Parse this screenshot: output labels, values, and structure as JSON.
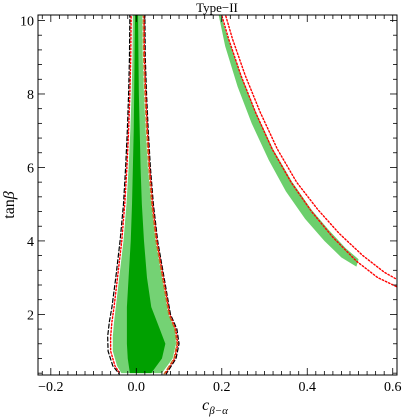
{
  "chart_data": {
    "type": "contour",
    "title": "Type−II",
    "xlabel": {
      "base": "c",
      "subscript": "β−α"
    },
    "ylabel": {
      "base": "tan",
      "symbol": "β"
    },
    "xlim": [
      -0.23,
      0.61
    ],
    "ylim": [
      0.35,
      10.15
    ],
    "x_ticks": [
      -0.2,
      0.0,
      0.2,
      0.4,
      0.6
    ],
    "x_tick_labels": [
      "−0.2",
      "0.0",
      "0.2",
      "0.4",
      "0.6"
    ],
    "y_ticks": [
      2,
      4,
      6,
      8,
      10
    ],
    "y_tick_labels": [
      "2",
      "4",
      "6",
      "8",
      "10"
    ],
    "grid": false,
    "colors": {
      "inner_region": "#00a000",
      "outer_region": "#74d274",
      "wrong_sign_region": "#6ccf6c",
      "dashed_black": "#000000",
      "dotted_red": "#ff0000",
      "dashed_orange": "#c07020"
    },
    "regions": [
      {
        "id": "left-outer",
        "right": [
          [
            0.06,
            0.4
          ],
          [
            0.085,
            0.8
          ],
          [
            0.093,
            1.2
          ],
          [
            0.09,
            1.6
          ],
          [
            0.075,
            2.0
          ],
          [
            0.06,
            3.0
          ],
          [
            0.045,
            4.0
          ],
          [
            0.035,
            5.0
          ],
          [
            0.027,
            6.0
          ],
          [
            0.022,
            7.0
          ],
          [
            0.018,
            8.0
          ],
          [
            0.015,
            9.0
          ],
          [
            0.014,
            10.2
          ]
        ],
        "left": [
          [
            -0.008,
            10.2
          ],
          [
            -0.009,
            9.0
          ],
          [
            -0.011,
            8.0
          ],
          [
            -0.014,
            7.0
          ],
          [
            -0.018,
            6.0
          ],
          [
            -0.023,
            5.0
          ],
          [
            -0.03,
            4.0
          ],
          [
            -0.04,
            3.0
          ],
          [
            -0.048,
            2.2
          ],
          [
            -0.052,
            1.8
          ],
          [
            -0.055,
            1.4
          ],
          [
            -0.055,
            1.0
          ],
          [
            -0.045,
            0.6
          ],
          [
            -0.035,
            0.4
          ]
        ]
      },
      {
        "id": "left-inner",
        "right": [
          [
            0.035,
            0.4
          ],
          [
            0.06,
            0.8
          ],
          [
            0.068,
            1.2
          ],
          [
            0.055,
            1.6
          ],
          [
            0.035,
            2.2
          ],
          [
            0.025,
            3.0
          ],
          [
            0.018,
            4.0
          ],
          [
            0.013,
            5.0
          ],
          [
            0.01,
            6.0
          ],
          [
            0.008,
            7.0
          ],
          [
            0.006,
            8.0
          ],
          [
            0.005,
            9.0
          ],
          [
            0.004,
            10.2
          ]
        ],
        "left": [
          [
            -0.003,
            10.2
          ],
          [
            -0.004,
            9.0
          ],
          [
            -0.005,
            8.0
          ],
          [
            -0.006,
            7.0
          ],
          [
            -0.008,
            6.0
          ],
          [
            -0.01,
            5.0
          ],
          [
            -0.013,
            4.0
          ],
          [
            -0.018,
            3.0
          ],
          [
            -0.022,
            2.2
          ],
          [
            -0.022,
            1.6
          ],
          [
            -0.022,
            1.2
          ],
          [
            -0.02,
            0.8
          ],
          [
            -0.015,
            0.4
          ]
        ]
      },
      {
        "id": "right-band",
        "upper": [
          [
            0.193,
            10.3
          ],
          [
            0.215,
            9.5
          ],
          [
            0.245,
            8.5
          ],
          [
            0.28,
            7.5
          ],
          [
            0.32,
            6.5
          ],
          [
            0.365,
            5.6
          ],
          [
            0.41,
            4.85
          ],
          [
            0.45,
            4.3
          ],
          [
            0.49,
            3.8
          ],
          [
            0.52,
            3.5
          ]
        ],
        "lower": [
          [
            0.515,
            3.3
          ],
          [
            0.48,
            3.55
          ],
          [
            0.44,
            4.0
          ],
          [
            0.395,
            4.6
          ],
          [
            0.35,
            5.35
          ],
          [
            0.31,
            6.2
          ],
          [
            0.27,
            7.2
          ],
          [
            0.237,
            8.2
          ],
          [
            0.208,
            9.3
          ],
          [
            0.19,
            10.3
          ]
        ]
      }
    ],
    "lines": [
      {
        "id": "black-dashed-left",
        "style": "dashed",
        "color": "#000000",
        "points": [
          [
            -0.015,
            10.2
          ],
          [
            -0.016,
            9.0
          ],
          [
            -0.018,
            8.0
          ],
          [
            -0.021,
            7.0
          ],
          [
            -0.025,
            6.0
          ],
          [
            -0.03,
            5.0
          ],
          [
            -0.038,
            4.0
          ],
          [
            -0.048,
            3.0
          ],
          [
            -0.057,
            2.2
          ],
          [
            -0.063,
            1.8
          ],
          [
            -0.067,
            1.4
          ],
          [
            -0.066,
            1.0
          ],
          [
            -0.055,
            0.6
          ],
          [
            -0.04,
            0.38
          ]
        ]
      },
      {
        "id": "black-dashed-right",
        "style": "dashed",
        "color": "#000000",
        "points": [
          [
            0.02,
            10.2
          ],
          [
            0.021,
            9.0
          ],
          [
            0.024,
            8.0
          ],
          [
            0.028,
            7.0
          ],
          [
            0.033,
            6.0
          ],
          [
            0.04,
            5.0
          ],
          [
            0.05,
            4.0
          ],
          [
            0.065,
            3.0
          ],
          [
            0.08,
            2.0
          ],
          [
            0.095,
            1.6
          ],
          [
            0.1,
            1.2
          ],
          [
            0.093,
            0.8
          ],
          [
            0.07,
            0.38
          ]
        ]
      },
      {
        "id": "red-dotted-left",
        "style": "dotted",
        "color": "#ff0000",
        "points": [
          [
            -0.012,
            10.2
          ],
          [
            -0.013,
            9.0
          ],
          [
            -0.015,
            8.0
          ],
          [
            -0.018,
            7.0
          ],
          [
            -0.022,
            6.0
          ],
          [
            -0.027,
            5.0
          ],
          [
            -0.034,
            4.0
          ],
          [
            -0.044,
            3.0
          ],
          [
            -0.052,
            2.2
          ],
          [
            -0.057,
            1.8
          ],
          [
            -0.06,
            1.4
          ],
          [
            -0.06,
            1.0
          ],
          [
            -0.05,
            0.6
          ],
          [
            -0.038,
            0.38
          ]
        ]
      },
      {
        "id": "red-dotted-right",
        "style": "dotted",
        "color": "#ff0000",
        "points": [
          [
            0.018,
            10.2
          ],
          [
            0.019,
            9.0
          ],
          [
            0.022,
            8.0
          ],
          [
            0.026,
            7.0
          ],
          [
            0.031,
            6.0
          ],
          [
            0.038,
            5.0
          ],
          [
            0.048,
            4.0
          ],
          [
            0.063,
            3.0
          ],
          [
            0.078,
            2.0
          ],
          [
            0.092,
            1.6
          ],
          [
            0.097,
            1.2
          ],
          [
            0.09,
            0.8
          ],
          [
            0.067,
            0.38
          ]
        ]
      },
      {
        "id": "orange-dashed-right",
        "style": "dashed",
        "color": "#c07020",
        "points": [
          [
            0.016,
            10.2
          ],
          [
            0.017,
            9.0
          ],
          [
            0.02,
            8.0
          ],
          [
            0.024,
            7.0
          ],
          [
            0.029,
            6.0
          ],
          [
            0.036,
            5.0
          ],
          [
            0.046,
            4.0
          ],
          [
            0.061,
            3.0
          ],
          [
            0.076,
            2.0
          ],
          [
            0.09,
            1.6
          ],
          [
            0.095,
            1.2
          ],
          [
            0.088,
            0.8
          ],
          [
            0.065,
            0.38
          ]
        ]
      },
      {
        "id": "red-dotted-upper",
        "style": "dotted",
        "color": "#ff0000",
        "points": [
          [
            0.205,
            10.3
          ],
          [
            0.225,
            9.5
          ],
          [
            0.255,
            8.5
          ],
          [
            0.29,
            7.5
          ],
          [
            0.33,
            6.5
          ],
          [
            0.375,
            5.6
          ],
          [
            0.425,
            4.85
          ],
          [
            0.475,
            4.2
          ],
          [
            0.53,
            3.6
          ],
          [
            0.58,
            3.15
          ],
          [
            0.61,
            2.95
          ]
        ]
      },
      {
        "id": "red-dotted-lower",
        "style": "dotted",
        "color": "#ff0000",
        "points": [
          [
            0.196,
            10.3
          ],
          [
            0.216,
            9.5
          ],
          [
            0.245,
            8.5
          ],
          [
            0.279,
            7.5
          ],
          [
            0.318,
            6.5
          ],
          [
            0.362,
            5.6
          ],
          [
            0.41,
            4.8
          ],
          [
            0.46,
            4.1
          ],
          [
            0.515,
            3.45
          ],
          [
            0.565,
            3.0
          ],
          [
            0.61,
            2.75
          ]
        ]
      }
    ]
  }
}
